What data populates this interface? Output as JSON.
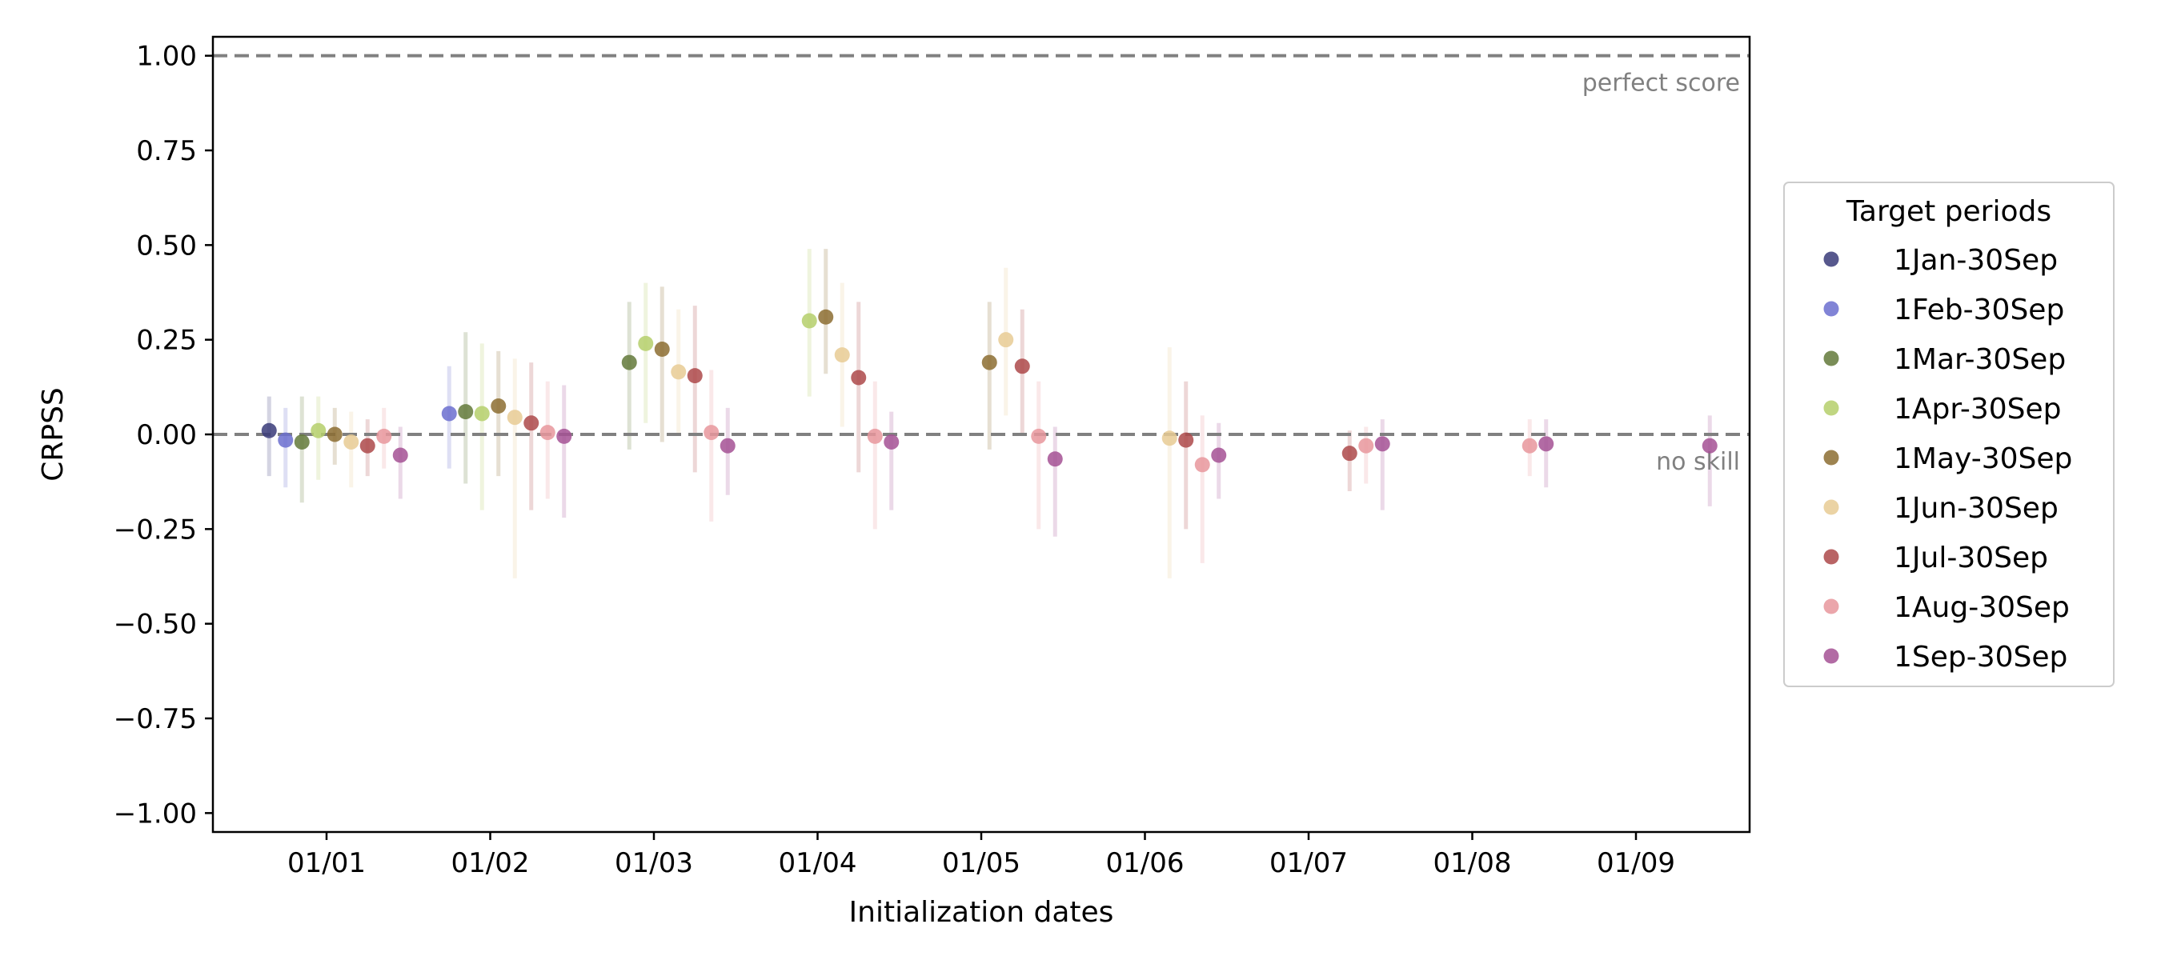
{
  "chart_data": {
    "type": "scatter",
    "xlabel": "Initialization dates",
    "ylabel": "CRPSS",
    "categories": [
      "01/01",
      "01/02",
      "01/03",
      "01/04",
      "01/05",
      "01/06",
      "01/07",
      "01/08",
      "01/09"
    ],
    "ylim": [
      -1.05,
      1.05
    ],
    "yticks": [
      "−1.00",
      "−0.75",
      "−0.50",
      "−0.25",
      "0.00",
      "0.25",
      "0.50",
      "0.75",
      "1.00"
    ],
    "ytick_values": [
      -1.0,
      -0.75,
      -0.5,
      -0.25,
      0.0,
      0.25,
      0.5,
      0.75,
      1.0
    ],
    "grid": false,
    "reference_lines": [
      {
        "y": 1.0,
        "label": "perfect score",
        "color": "#808080"
      },
      {
        "y": 0.0,
        "label": "no skill",
        "color": "#808080"
      }
    ],
    "legend": {
      "title": "Target periods",
      "placement": "outside-right"
    },
    "series": [
      {
        "name": "1Jan-30Sep",
        "color": "#393b79",
        "points": [
          {
            "x": "01/01",
            "y": 0.01,
            "lo": -0.11,
            "hi": 0.1
          }
        ]
      },
      {
        "name": "1Feb-30Sep",
        "color": "#6b6ecf",
        "points": [
          {
            "x": "01/01",
            "y": -0.015,
            "lo": -0.14,
            "hi": 0.07
          },
          {
            "x": "01/02",
            "y": 0.055,
            "lo": -0.09,
            "hi": 0.18
          }
        ]
      },
      {
        "name": "1Mar-30Sep",
        "color": "#637939",
        "points": [
          {
            "x": "01/01",
            "y": -0.02,
            "lo": -0.18,
            "hi": 0.1
          },
          {
            "x": "01/02",
            "y": 0.06,
            "lo": -0.13,
            "hi": 0.27
          },
          {
            "x": "01/03",
            "y": 0.19,
            "lo": -0.04,
            "hi": 0.35
          }
        ]
      },
      {
        "name": "1Apr-30Sep",
        "color": "#b5cf6b",
        "points": [
          {
            "x": "01/01",
            "y": 0.01,
            "lo": -0.12,
            "hi": 0.1
          },
          {
            "x": "01/02",
            "y": 0.055,
            "lo": -0.2,
            "hi": 0.24
          },
          {
            "x": "01/03",
            "y": 0.24,
            "lo": 0.03,
            "hi": 0.4
          },
          {
            "x": "01/04",
            "y": 0.3,
            "lo": 0.1,
            "hi": 0.49
          }
        ]
      },
      {
        "name": "1May-30Sep",
        "color": "#8c6d31",
        "points": [
          {
            "x": "01/01",
            "y": 0.0,
            "lo": -0.08,
            "hi": 0.07
          },
          {
            "x": "01/02",
            "y": 0.075,
            "lo": -0.11,
            "hi": 0.22
          },
          {
            "x": "01/03",
            "y": 0.225,
            "lo": -0.02,
            "hi": 0.39
          },
          {
            "x": "01/04",
            "y": 0.31,
            "lo": 0.16,
            "hi": 0.49
          },
          {
            "x": "01/05",
            "y": 0.19,
            "lo": -0.04,
            "hi": 0.35
          }
        ]
      },
      {
        "name": "1Jun-30Sep",
        "color": "#e7cb94",
        "points": [
          {
            "x": "01/01",
            "y": -0.02,
            "lo": -0.14,
            "hi": 0.06
          },
          {
            "x": "01/02",
            "y": 0.045,
            "lo": -0.38,
            "hi": 0.2
          },
          {
            "x": "01/03",
            "y": 0.165,
            "lo": 0.0,
            "hi": 0.33
          },
          {
            "x": "01/04",
            "y": 0.21,
            "lo": 0.02,
            "hi": 0.4
          },
          {
            "x": "01/05",
            "y": 0.25,
            "lo": 0.05,
            "hi": 0.44
          },
          {
            "x": "01/06",
            "y": -0.01,
            "lo": -0.38,
            "hi": 0.23
          }
        ]
      },
      {
        "name": "1Jul-30Sep",
        "color": "#ad494a",
        "points": [
          {
            "x": "01/01",
            "y": -0.03,
            "lo": -0.11,
            "hi": 0.04
          },
          {
            "x": "01/02",
            "y": 0.03,
            "lo": -0.2,
            "hi": 0.19
          },
          {
            "x": "01/03",
            "y": 0.155,
            "lo": -0.1,
            "hi": 0.34
          },
          {
            "x": "01/04",
            "y": 0.15,
            "lo": -0.1,
            "hi": 0.35
          },
          {
            "x": "01/05",
            "y": 0.18,
            "lo": 0.0,
            "hi": 0.33
          },
          {
            "x": "01/06",
            "y": -0.015,
            "lo": -0.25,
            "hi": 0.14
          },
          {
            "x": "01/07",
            "y": -0.05,
            "lo": -0.15,
            "hi": 0.01
          }
        ]
      },
      {
        "name": "1Aug-30Sep",
        "color": "#e7969c",
        "points": [
          {
            "x": "01/01",
            "y": -0.005,
            "lo": -0.09,
            "hi": 0.07
          },
          {
            "x": "01/02",
            "y": 0.005,
            "lo": -0.17,
            "hi": 0.14
          },
          {
            "x": "01/03",
            "y": 0.005,
            "lo": -0.23,
            "hi": 0.17
          },
          {
            "x": "01/04",
            "y": -0.005,
            "lo": -0.25,
            "hi": 0.14
          },
          {
            "x": "01/05",
            "y": -0.005,
            "lo": -0.25,
            "hi": 0.14
          },
          {
            "x": "01/06",
            "y": -0.08,
            "lo": -0.34,
            "hi": 0.05
          },
          {
            "x": "01/07",
            "y": -0.03,
            "lo": -0.13,
            "hi": 0.02
          },
          {
            "x": "01/08",
            "y": -0.03,
            "lo": -0.11,
            "hi": 0.04
          }
        ]
      },
      {
        "name": "1Sep-30Sep",
        "color": "#a55194",
        "points": [
          {
            "x": "01/01",
            "y": -0.055,
            "lo": -0.17,
            "hi": 0.02
          },
          {
            "x": "01/02",
            "y": -0.005,
            "lo": -0.22,
            "hi": 0.13
          },
          {
            "x": "01/03",
            "y": -0.03,
            "lo": -0.16,
            "hi": 0.07
          },
          {
            "x": "01/04",
            "y": -0.02,
            "lo": -0.2,
            "hi": 0.06
          },
          {
            "x": "01/05",
            "y": -0.065,
            "lo": -0.27,
            "hi": 0.02
          },
          {
            "x": "01/06",
            "y": -0.055,
            "lo": -0.17,
            "hi": 0.03
          },
          {
            "x": "01/07",
            "y": -0.025,
            "lo": -0.2,
            "hi": 0.04
          },
          {
            "x": "01/08",
            "y": -0.025,
            "lo": -0.14,
            "hi": 0.04
          },
          {
            "x": "01/09",
            "y": -0.03,
            "lo": -0.19,
            "hi": 0.05
          }
        ]
      }
    ]
  }
}
